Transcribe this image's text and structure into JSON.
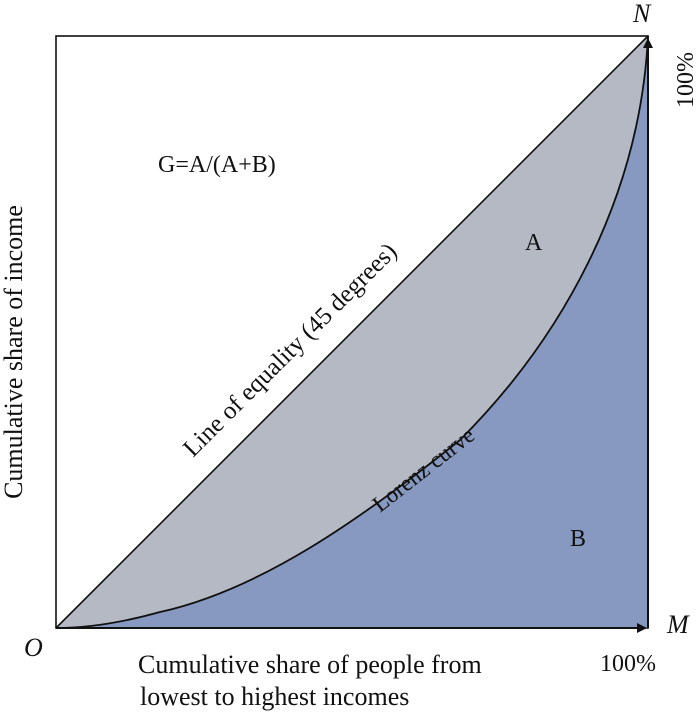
{
  "diagram": {
    "formula": "G=A/(A+B)",
    "region_a_label": "A",
    "region_b_label": "B",
    "equality_line_label": "Line of equality (45 degrees)",
    "lorenz_label": "Lorenz curve",
    "origin_label": "O",
    "point_m_label": "M",
    "point_n_label": "N",
    "x_max_label": "100%",
    "y_max_label": "100%",
    "y_axis_title": "Cumulative share of income",
    "x_axis_title_line1": "Cumulative share of people from",
    "x_axis_title_line2": "lowest to highest incomes",
    "colors": {
      "region_a": "#b4b9c4",
      "region_b": "#8799c0",
      "lines": "#111111"
    }
  }
}
